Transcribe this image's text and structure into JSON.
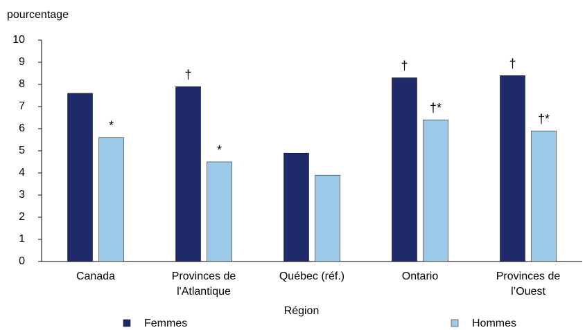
{
  "chart_data": {
    "type": "bar",
    "y_axis_label": "pourcentage",
    "x_axis_label": "Région",
    "categories": [
      [
        "Canada"
      ],
      [
        "Provinces de",
        "l'Atlantique"
      ],
      [
        "Québec (réf.)"
      ],
      [
        "Ontario"
      ],
      [
        "Provinces de",
        "l’Ouest"
      ]
    ],
    "series": [
      {
        "name": "Femmes",
        "color": "#1f2a6b",
        "values": [
          7.6,
          7.9,
          4.9,
          8.3,
          8.4
        ],
        "annotations": [
          null,
          "†",
          null,
          "†",
          "†"
        ]
      },
      {
        "name": "Hommes",
        "color": "#9ecae9",
        "values": [
          5.6,
          4.5,
          3.9,
          6.4,
          5.9
        ],
        "annotations": [
          "*",
          "*",
          null,
          "†*",
          "†*"
        ]
      }
    ],
    "ylim": [
      0,
      10
    ],
    "yticks": [
      0,
      1,
      2,
      3,
      4,
      5,
      6,
      7,
      8,
      9,
      10
    ],
    "grid": false,
    "legend": "bottom"
  }
}
